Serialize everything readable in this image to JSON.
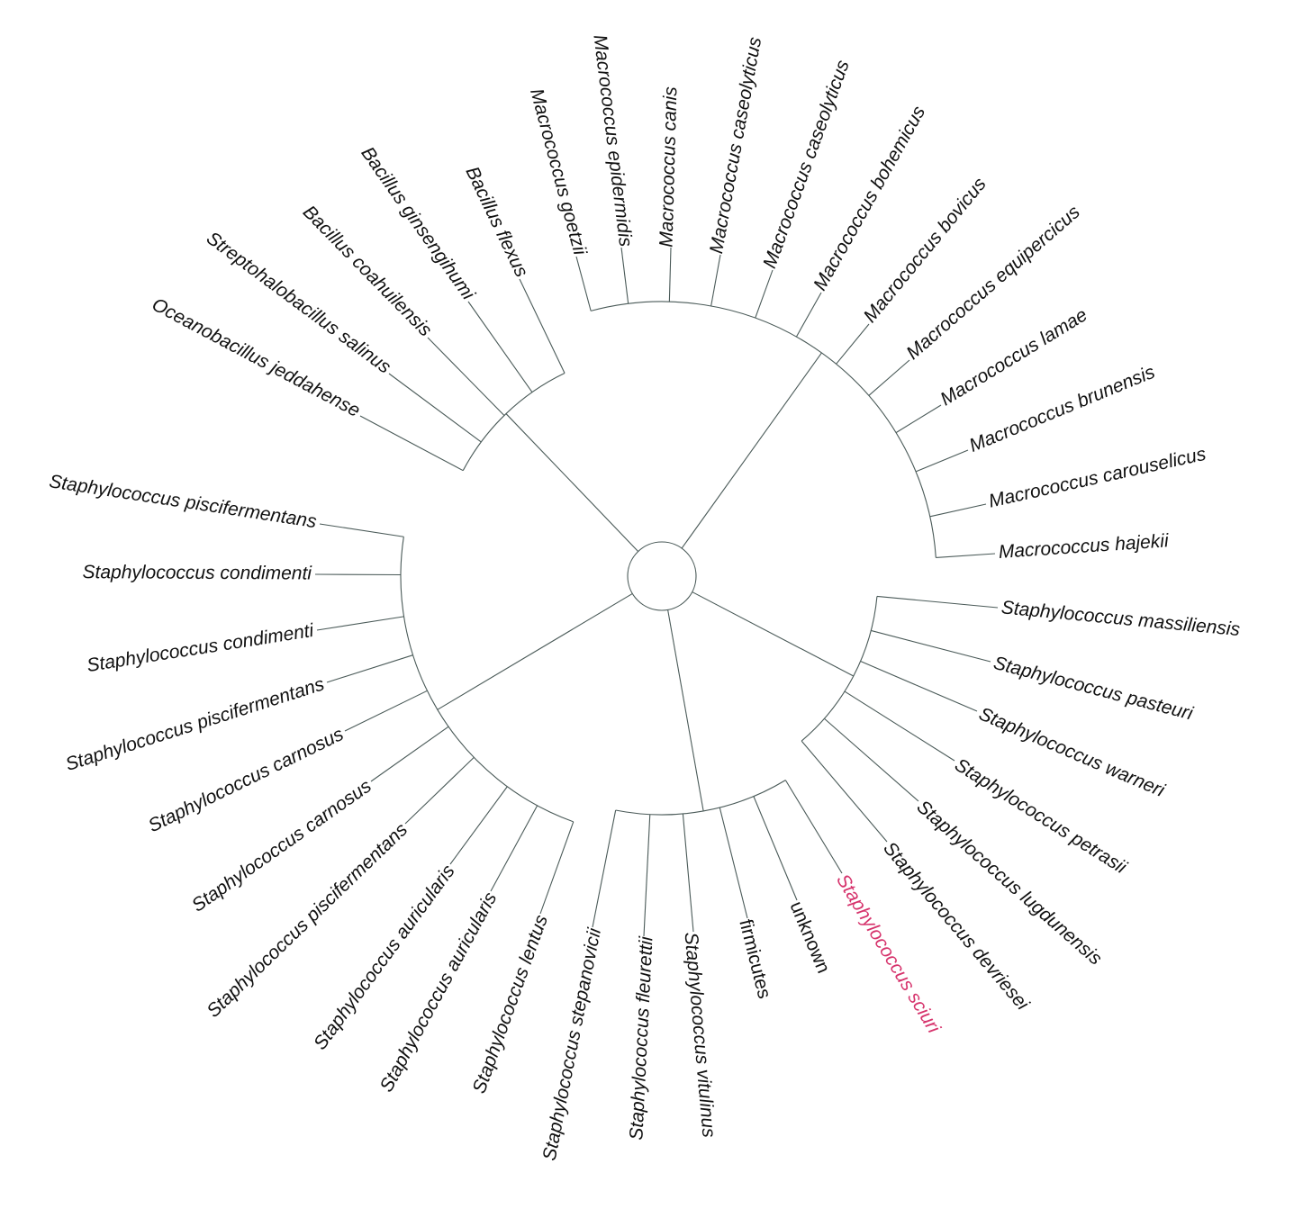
{
  "leaves": [
    "Oceanobacillus jeddahense",
    "Streptohalobacillus salinus",
    "Bacillus coahuilensis",
    "Bacillus ginsengihumi",
    "Bacillus flexus",
    "Macrococcus goetzii",
    "Macrococcus epidermidis",
    "Macrococcus canis",
    "Macrococcus caseolyticus",
    "Macrococcus caseolyticus",
    "Macrococcus bohemicus",
    "Macrococcus bovicus",
    "Macrococcus equipercicus",
    "Macrococcus lamae",
    "Macrococcus brunensis",
    "Macrococcus carouselicus",
    "Macrococcus hajekii",
    "Staphylococcus massiliensis",
    "Staphylococcus pasteuri",
    "Staphylococcus warneri",
    "Staphylococcus petrasii",
    "Staphylococcus lugdunensis",
    "Staphylococcus devriesei",
    "Staphylococcus sciuri",
    "unknown",
    "firmicutes",
    "Staphylococcus vitulinus",
    "Staphylococcus fleurettii",
    "Staphylococcus stepanovicii",
    "Staphylococcus lentus",
    "Staphylococcus auricularis",
    "Staphylococcus auricularis",
    "Staphylococcus piscifermentans",
    "Staphylococcus carnosus",
    "Staphylococcus carnosus",
    "Staphylococcus piscifermentans",
    "Staphylococcus condimenti",
    "Staphylococcus condimenti",
    "Staphylococcus piscifermentans"
  ]
}
